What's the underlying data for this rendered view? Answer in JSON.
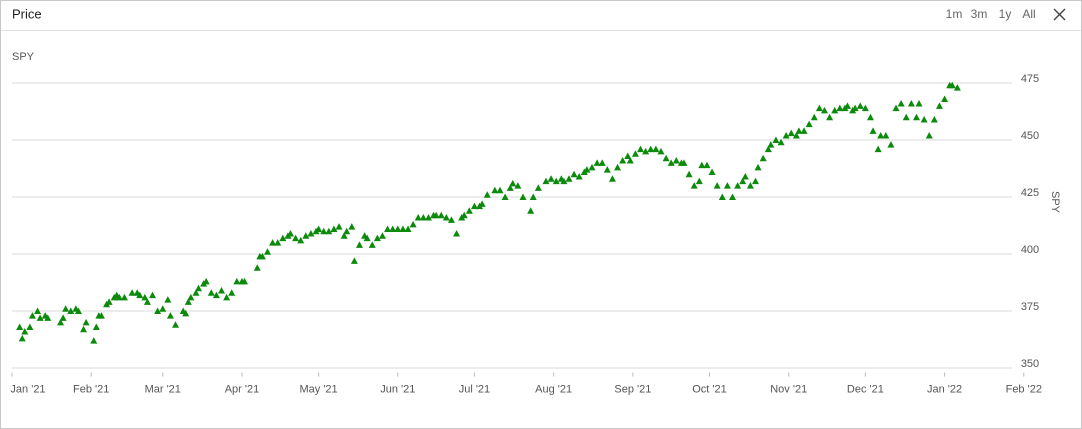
{
  "ui": {
    "range_buttons": [
      "1m",
      "3m",
      "1y",
      "All"
    ]
  },
  "chart_data": {
    "type": "scatter",
    "title": "Price",
    "y_label": "SPY",
    "y_label_right": "SPY",
    "color": "#0b8a0b",
    "marker": "triangle",
    "grid": true,
    "xlim": [
      0,
      400
    ],
    "ylim": [
      348,
      494
    ],
    "xticks": [
      {
        "value": 0,
        "label": "Jan '21"
      },
      {
        "value": 31,
        "label": "Feb '21"
      },
      {
        "value": 59,
        "label": "Mar '21"
      },
      {
        "value": 90,
        "label": "Apr '21"
      },
      {
        "value": 120,
        "label": "May '21"
      },
      {
        "value": 151,
        "label": "Jun '21"
      },
      {
        "value": 181,
        "label": "Jul '21"
      },
      {
        "value": 212,
        "label": "Aug '21"
      },
      {
        "value": 243,
        "label": "Sep '21"
      },
      {
        "value": 273,
        "label": "Oct '21"
      },
      {
        "value": 304,
        "label": "Nov '21"
      },
      {
        "value": 334,
        "label": "Dec '21"
      },
      {
        "value": 365,
        "label": "Jan '22"
      },
      {
        "value": 396,
        "label": "Feb '22"
      }
    ],
    "yticks": [
      350,
      375,
      400,
      425,
      450,
      475
    ],
    "x": [
      3,
      4,
      5,
      7,
      8,
      10,
      11,
      13,
      14,
      19,
      20,
      21,
      23,
      25,
      26,
      28,
      29,
      32,
      33,
      34,
      35,
      37,
      38,
      40,
      41,
      42,
      44,
      47,
      49,
      50,
      52,
      53,
      55,
      57,
      59,
      61,
      62,
      64,
      67,
      68,
      69,
      70,
      72,
      73,
      75,
      76,
      78,
      80,
      82,
      84,
      86,
      88,
      90,
      91,
      96,
      97,
      98,
      100,
      102,
      104,
      106,
      108,
      109,
      111,
      113,
      115,
      117,
      119,
      120,
      122,
      124,
      126,
      128,
      130,
      131,
      133,
      134,
      136,
      138,
      139,
      141,
      143,
      145,
      147,
      149,
      151,
      153,
      155,
      157,
      159,
      161,
      163,
      165,
      166,
      168,
      170,
      172,
      174,
      176,
      177,
      179,
      181,
      183,
      184,
      186,
      189,
      191,
      193,
      195,
      196,
      198,
      200,
      203,
      204,
      206,
      209,
      211,
      213,
      215,
      216,
      218,
      220,
      222,
      224,
      225,
      227,
      229,
      231,
      233,
      235,
      237,
      239,
      241,
      242,
      244,
      246,
      248,
      250,
      252,
      254,
      256,
      258,
      260,
      262,
      263,
      265,
      267,
      269,
      270,
      272,
      274,
      276,
      278,
      280,
      282,
      284,
      286,
      287,
      289,
      291,
      292,
      294,
      296,
      297,
      299,
      301,
      303,
      305,
      307,
      308,
      310,
      312,
      314,
      316,
      318,
      320,
      322,
      324,
      326,
      327,
      329,
      330,
      332,
      334,
      336,
      337,
      339,
      340,
      342,
      344,
      346,
      348,
      350,
      352,
      354,
      355,
      357,
      359,
      361,
      363,
      365,
      367,
      368,
      370
    ],
    "values": [
      368,
      363,
      366,
      368,
      373,
      375,
      372,
      373,
      372,
      370,
      372,
      376,
      375,
      376,
      375,
      367,
      370,
      362,
      368,
      373,
      373,
      378,
      379,
      381,
      382,
      381,
      381,
      383,
      383,
      382,
      381,
      379,
      382,
      375,
      376,
      380,
      373,
      369,
      375,
      374,
      379,
      381,
      383,
      385,
      387,
      388,
      383,
      382,
      384,
      381,
      383,
      388,
      388,
      388,
      394,
      399,
      399,
      401,
      405,
      405,
      407,
      408,
      409,
      407,
      406,
      408,
      409,
      410,
      411,
      410,
      410,
      411,
      412,
      408,
      410,
      412,
      397,
      404,
      408,
      407,
      404,
      407,
      408,
      411,
      411,
      411,
      411,
      411,
      413,
      416,
      416,
      416,
      417,
      417,
      417,
      416,
      415,
      409,
      416,
      417,
      419,
      421,
      421,
      422,
      426,
      428,
      428,
      425,
      429,
      431,
      430,
      425,
      419,
      425,
      429,
      432,
      433,
      432,
      433,
      432,
      433,
      435,
      434,
      436,
      437,
      438,
      440,
      440,
      437,
      433,
      438,
      441,
      443,
      441,
      444,
      446,
      445,
      446,
      446,
      445,
      442,
      440,
      441,
      440,
      440,
      435,
      430,
      432,
      439,
      439,
      436,
      430,
      425,
      430,
      425,
      430,
      432,
      434,
      430,
      432,
      438,
      442,
      446,
      448,
      450,
      449,
      452,
      453,
      452,
      454,
      454,
      457,
      460,
      464,
      463,
      460,
      463,
      464,
      464,
      465,
      463,
      464,
      465,
      464,
      460,
      454,
      446,
      452,
      452,
      448,
      464,
      466,
      460,
      466,
      460,
      466,
      459,
      452,
      459,
      465,
      468,
      474,
      474,
      473
    ]
  }
}
